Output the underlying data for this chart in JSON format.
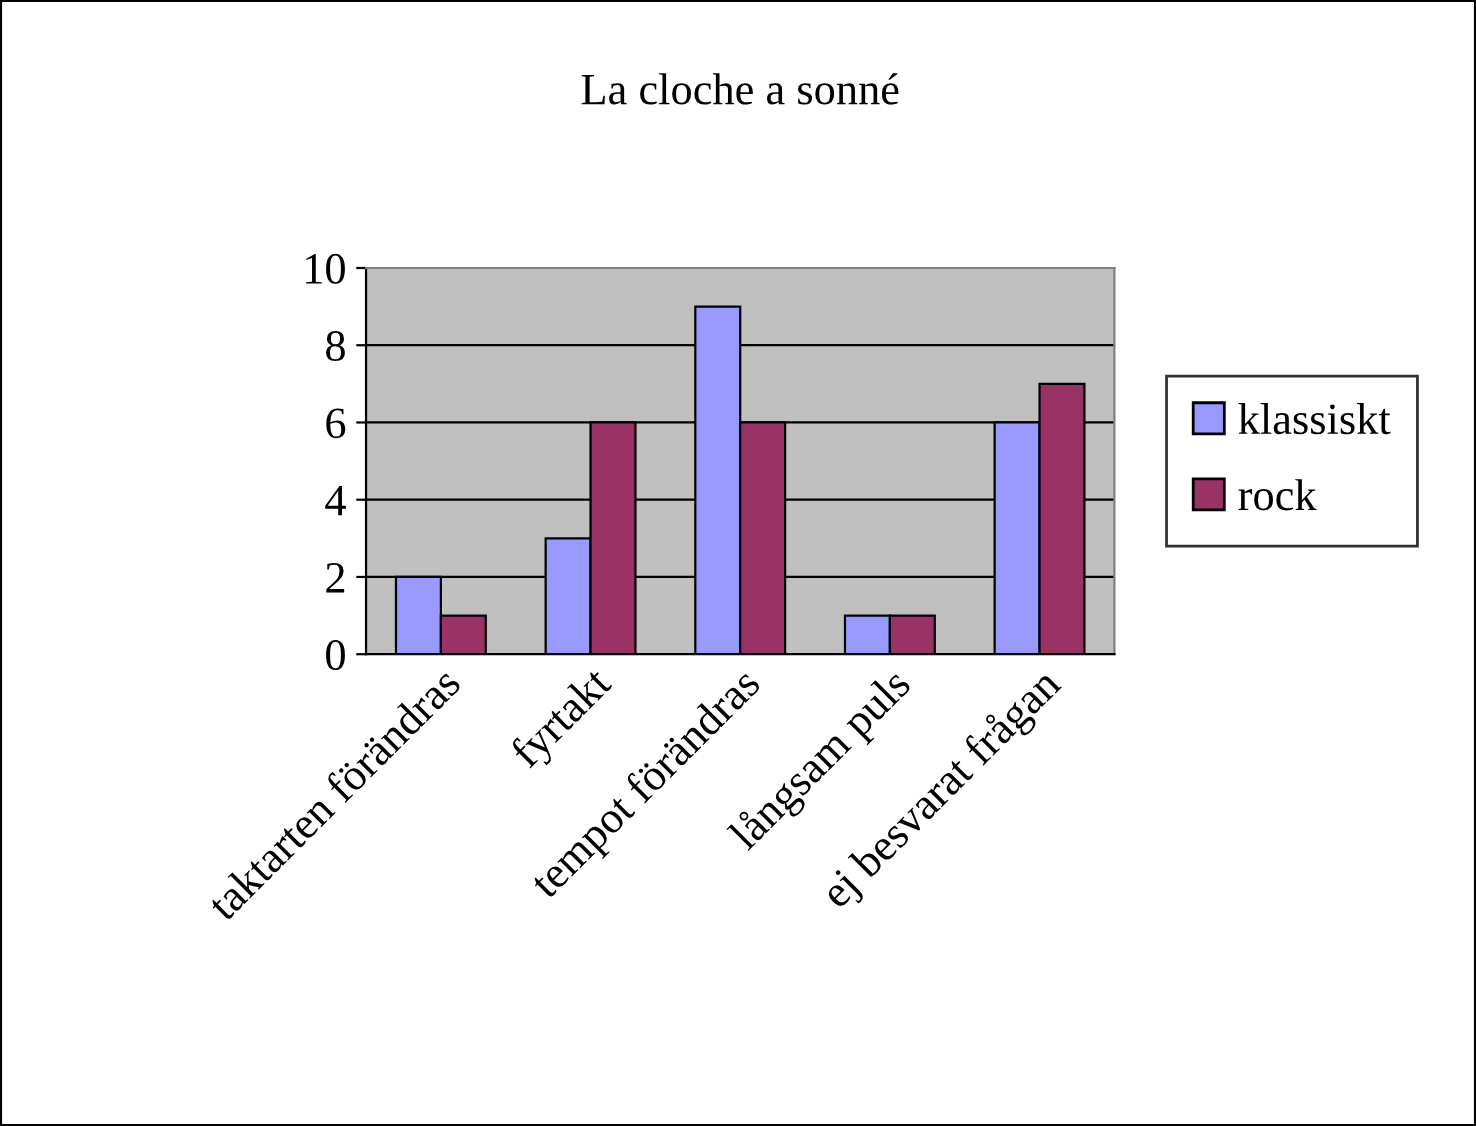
{
  "chart_data": {
    "type": "bar",
    "title": "La cloche a sonné",
    "categories": [
      "taktarten förändras",
      "fyrtakt",
      "tempot förändras",
      "långsam puls",
      "ej besvarat frågan"
    ],
    "series": [
      {
        "name": "klassiskt",
        "color": "#9999ff",
        "values": [
          2,
          3,
          9,
          1,
          6
        ]
      },
      {
        "name": "rock",
        "color": "#993366",
        "values": [
          1,
          6,
          6,
          1,
          7
        ]
      }
    ],
    "ylim": [
      0,
      10
    ],
    "yticks": [
      0,
      2,
      4,
      6,
      8,
      10
    ],
    "grid": "y",
    "legend": "right"
  }
}
